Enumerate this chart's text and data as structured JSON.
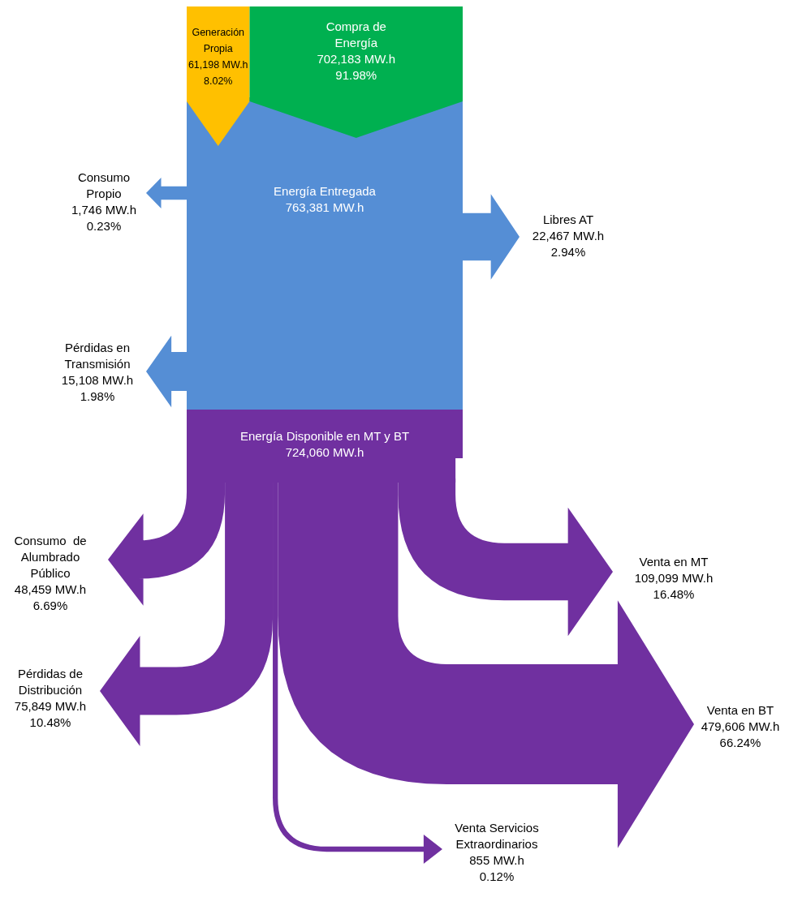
{
  "chart_data": {
    "type": "other",
    "categories": [
      "Generación\nPropia",
      "Compra de\nEnergía",
      "Energía Entregada",
      "Consumo\nPropio",
      "Libres AT",
      "Pérdidas en\nTransmisión",
      "Energía Disponible en MT y BT",
      "Consumo  de\nAlumbrado\nPúblico",
      "Pérdidas de\nDistribución",
      "Venta en MT",
      "Venta en BT",
      "Venta Servicios\nExtraordinarios"
    ],
    "values": [
      61198,
      702183,
      763381,
      1746,
      22467,
      15108,
      724060,
      48459,
      75849,
      109099,
      479606,
      855
    ],
    "value_labels": [
      "61,198 MW.h\n8.02%",
      "702,183 MW.h\n91.98%",
      "763,381 MW.h",
      "1,746 MW.h\n0.23%",
      "22,467 MW.h\n2.94%",
      "15,108 MW.h\n1.98%",
      "724,060 MW.h",
      "48,459 MW.h\n6.69%",
      "75,849 MW.h\n10.48%",
      "109,099 MW.h\n16.48%",
      "479,606 MW.h\n66.24%",
      "855 MW.h\n0.12%"
    ],
    "colors": [
      "#ffc000",
      "#00b050",
      "#558ed5",
      "#558ed5",
      "#558ed5",
      "#558ed5",
      "#7030a0",
      "#7030a0",
      "#7030a0",
      "#7030a0",
      "#7030a0",
      "#7030a0"
    ]
  }
}
